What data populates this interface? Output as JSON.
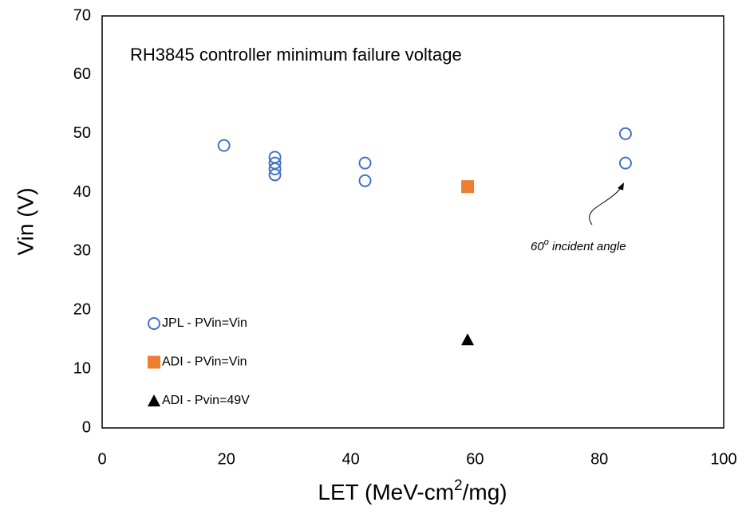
{
  "chart_data": {
    "type": "scatter",
    "title": "RH3845 controller minimum failure voltage",
    "xlabel": [
      "LET (MeV-cm",
      "2",
      "/mg)"
    ],
    "ylabel": "Vin (V)",
    "xlim": [
      0,
      100
    ],
    "xticks": [
      0,
      20,
      40,
      60,
      80,
      100
    ],
    "ylim": [
      0,
      70
    ],
    "yticks": [
      0,
      10,
      20,
      30,
      40,
      50,
      60,
      70
    ],
    "grid": false,
    "legend": "lower left",
    "annotation": {
      "parts": [
        "60",
        "o",
        " incident angle"
      ]
    },
    "series": [
      {
        "name": "JPL - PVin=Vin",
        "color": "#4472c4",
        "marker": "circle",
        "x": [
          19.6,
          27.8,
          27.8,
          27.8,
          27.8,
          42.3,
          42.3,
          84.2,
          84.2
        ],
        "y": [
          48,
          46,
          45,
          44,
          43,
          45,
          42,
          50,
          45
        ]
      },
      {
        "name": "ADI - PVin=Vin",
        "color": "#ed7d31",
        "marker": "square",
        "x": [
          58.8
        ],
        "y": [
          41
        ]
      },
      {
        "name": "ADI - Pvin=49V",
        "color": "#000000",
        "marker": "triangle",
        "x": [
          58.8
        ],
        "y": [
          15
        ]
      }
    ]
  }
}
